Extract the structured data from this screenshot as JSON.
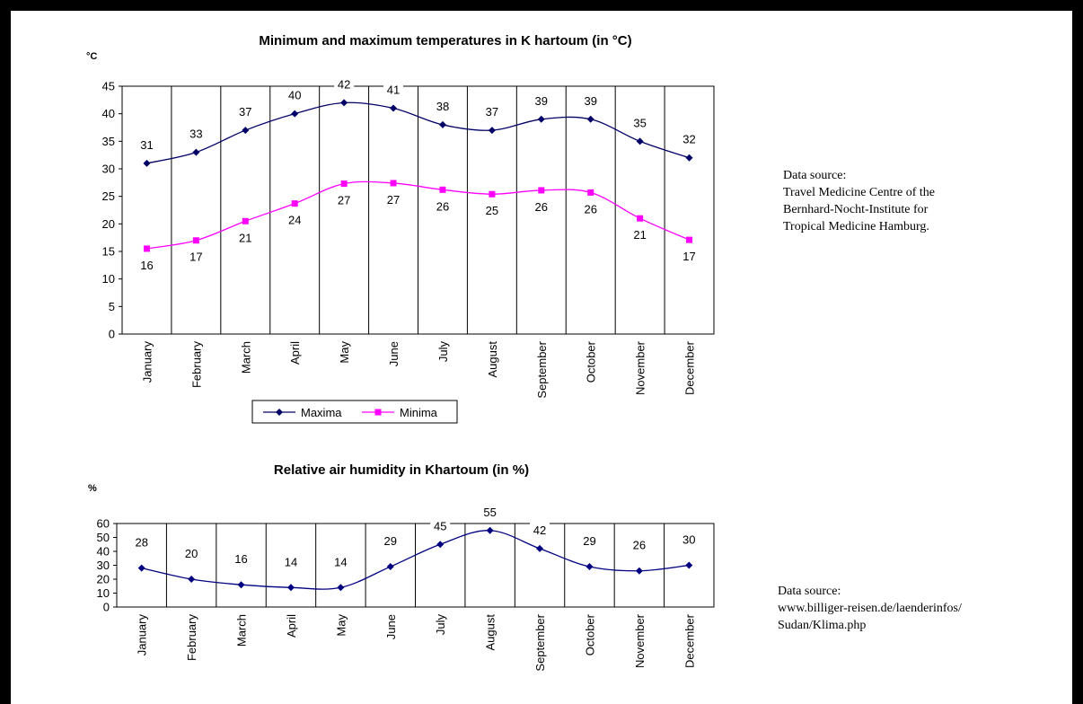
{
  "temperature_source": {
    "lines": [
      "Data source:",
      "Travel Medicine Centre of the",
      "Bernhard-Nocht-Institute for",
      "Tropical Medicine Hamburg."
    ]
  },
  "humidity_source": {
    "lines": [
      "Data source:",
      "www.billiger-reisen.de/laenderinfos/",
      "Sudan/Klima.php"
    ]
  },
  "chart_data": [
    {
      "type": "line",
      "title": "Minimum and maximum temperatures in K hartoum (in °C)",
      "ylabel": "°C",
      "xlabel": "",
      "ylim": [
        0,
        45
      ],
      "yticks": [
        0,
        5,
        10,
        15,
        20,
        25,
        30,
        35,
        40,
        45
      ],
      "grid": "vertical",
      "legend": "bottom",
      "categories": [
        "January",
        "February",
        "March",
        "April",
        "May",
        "June",
        "July",
        "August",
        "September",
        "October",
        "November",
        "December"
      ],
      "series": [
        {
          "name": "Maxima",
          "color": "#000066",
          "marker": "diamond",
          "values": [
            31,
            33,
            37,
            40,
            42,
            41,
            38,
            37,
            39,
            39,
            35,
            32
          ],
          "labels": [
            "31",
            "33",
            "37",
            "40",
            "42",
            "41",
            "38",
            "37",
            "39",
            "39",
            "35",
            "32"
          ]
        },
        {
          "name": "Minima",
          "color": "#ff00ff",
          "marker": "square",
          "values": [
            15.5,
            17,
            20.5,
            23.7,
            27.3,
            27.4,
            26.2,
            25.4,
            26.1,
            25.7,
            21,
            17.1
          ],
          "labels": [
            "16",
            "17",
            "21",
            "24",
            "27",
            "27",
            "26",
            "25",
            "26",
            "26",
            "21",
            "17"
          ]
        }
      ]
    },
    {
      "type": "line",
      "title": "Relative air humidity in Khartoum (in %)",
      "ylabel": "%",
      "xlabel": "",
      "ylim": [
        0,
        60
      ],
      "yticks": [
        0,
        10,
        20,
        30,
        40,
        50,
        60
      ],
      "grid": "vertical",
      "categories": [
        "January",
        "February",
        "March",
        "April",
        "May",
        "June",
        "July",
        "August",
        "September",
        "October",
        "November",
        "December"
      ],
      "series": [
        {
          "color": "#000080",
          "marker": "diamond",
          "values": [
            28,
            20,
            16,
            14,
            14,
            29,
            45,
            55,
            42,
            29,
            26,
            30
          ],
          "labels": [
            "28",
            "20",
            "16",
            "14",
            "14",
            "29",
            "45",
            "55",
            "42",
            "29",
            "26",
            "30"
          ]
        }
      ]
    }
  ]
}
